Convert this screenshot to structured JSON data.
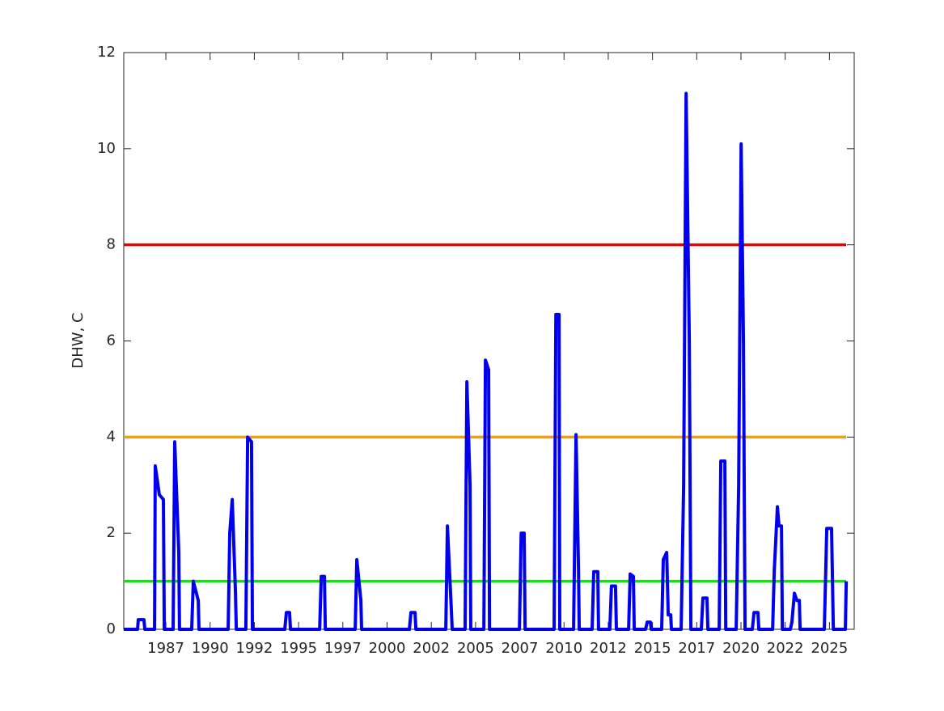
{
  "chart_data": {
    "type": "line",
    "ylabel": "DHW, C",
    "xlim": [
      1985.32,
      2026.6
    ],
    "xticks": [
      {
        "value": 1987.7,
        "label": "1987"
      },
      {
        "value": 1990.2,
        "label": "1990"
      },
      {
        "value": 1992.7,
        "label": "1992"
      },
      {
        "value": 1995.2,
        "label": "1995"
      },
      {
        "value": 1997.7,
        "label": "1997"
      },
      {
        "value": 2000.2,
        "label": "2000"
      },
      {
        "value": 2002.7,
        "label": "2002"
      },
      {
        "value": 2005.2,
        "label": "2005"
      },
      {
        "value": 2007.7,
        "label": "2007"
      },
      {
        "value": 2010.2,
        "label": "2010"
      },
      {
        "value": 2012.7,
        "label": "2012"
      },
      {
        "value": 2015.2,
        "label": "2015"
      },
      {
        "value": 2017.7,
        "label": "2017"
      },
      {
        "value": 2020.2,
        "label": "2020"
      },
      {
        "value": 2022.7,
        "label": "2022"
      },
      {
        "value": 2025.2,
        "label": "2025"
      }
    ],
    "ylim": [
      0,
      12
    ],
    "yticks": [
      0,
      2,
      4,
      6,
      8,
      10,
      12
    ],
    "thresholds": [
      {
        "value": 1,
        "color": "#00ee00"
      },
      {
        "value": 4,
        "color": "#f5a000"
      },
      {
        "value": 8,
        "color": "#ee0000"
      }
    ],
    "series": [
      {
        "color": "#0000ee",
        "x": [
          1985.32,
          1986.1,
          1986.14,
          1986.46,
          1986.51,
          1987.06,
          1987.1,
          1987.33,
          1987.56,
          1987.61,
          1988.11,
          1988.2,
          1988.43,
          1988.47,
          1989.16,
          1989.25,
          1989.53,
          1989.57,
          1991.22,
          1991.31,
          1991.45,
          1991.63,
          1991.68,
          1992.22,
          1992.32,
          1992.54,
          1992.59,
          1994.42,
          1994.51,
          1994.69,
          1994.74,
          1996.39,
          1996.48,
          1996.66,
          1996.71,
          1998.4,
          1998.49,
          1998.72,
          1998.76,
          2001.46,
          2001.55,
          2001.78,
          2001.83,
          2003.52,
          2003.61,
          2003.84,
          2003.88,
          2004.61,
          2004.71,
          2004.89,
          2004.93,
          2005.67,
          2005.76,
          2005.94,
          2005.99,
          2007.68,
          2007.78,
          2007.95,
          2008.0,
          2009.64,
          2009.74,
          2009.92,
          2009.96,
          2010.74,
          2010.88,
          2011.02,
          2011.06,
          2011.79,
          2011.88,
          2012.11,
          2012.15,
          2012.79,
          2012.88,
          2013.11,
          2013.16,
          2013.85,
          2013.94,
          2014.12,
          2014.17,
          2014.81,
          2014.9,
          2015.08,
          2015.13,
          2015.72,
          2015.81,
          2016.0,
          2016.09,
          2016.23,
          2016.27,
          2016.82,
          2016.96,
          2017.1,
          2017.28,
          2017.37,
          2017.96,
          2018.05,
          2018.28,
          2018.33,
          2018.97,
          2019.06,
          2019.29,
          2019.34,
          2019.93,
          2020.07,
          2020.21,
          2020.34,
          2020.43,
          2020.84,
          2020.94,
          2021.16,
          2021.21,
          2021.99,
          2022.08,
          2022.26,
          2022.35,
          2022.49,
          2022.54,
          2022.99,
          2023.08,
          2023.22,
          2023.36,
          2023.5,
          2023.54,
          2024.91,
          2025.05,
          2025.32,
          2025.42,
          2026.1,
          2026.15
        ],
        "values": [
          0,
          0,
          0.2,
          0.2,
          0,
          0,
          3.4,
          2.8,
          2.7,
          0,
          0,
          3.9,
          1.6,
          0,
          0,
          1.0,
          0.6,
          0,
          0,
          2.0,
          2.7,
          0.8,
          0,
          0,
          4.0,
          3.9,
          0,
          0,
          0.35,
          0.35,
          0,
          0,
          1.1,
          1.1,
          0,
          0,
          1.45,
          0.6,
          0,
          0,
          0.35,
          0.35,
          0,
          0,
          2.15,
          0.35,
          0,
          0,
          5.15,
          3.0,
          0,
          0,
          5.6,
          5.4,
          0,
          0,
          2.0,
          2.0,
          0,
          0,
          6.55,
          6.55,
          0,
          0,
          4.05,
          1.2,
          0,
          0,
          1.2,
          1.2,
          0,
          0,
          0.9,
          0.9,
          0,
          0,
          1.15,
          1.1,
          0,
          0,
          0.15,
          0.15,
          0,
          0,
          1.45,
          1.6,
          0.3,
          0.3,
          0,
          0,
          3.0,
          11.15,
          6.0,
          0,
          0,
          0.65,
          0.65,
          0,
          0,
          3.5,
          3.5,
          0,
          0,
          3.0,
          10.1,
          6.0,
          0,
          0,
          0.35,
          0.35,
          0,
          0,
          1.2,
          2.55,
          2.15,
          2.15,
          0,
          0,
          0.15,
          0.75,
          0.6,
          0.6,
          0,
          0,
          2.1,
          2.1,
          0,
          0,
          1.0
        ]
      }
    ]
  }
}
